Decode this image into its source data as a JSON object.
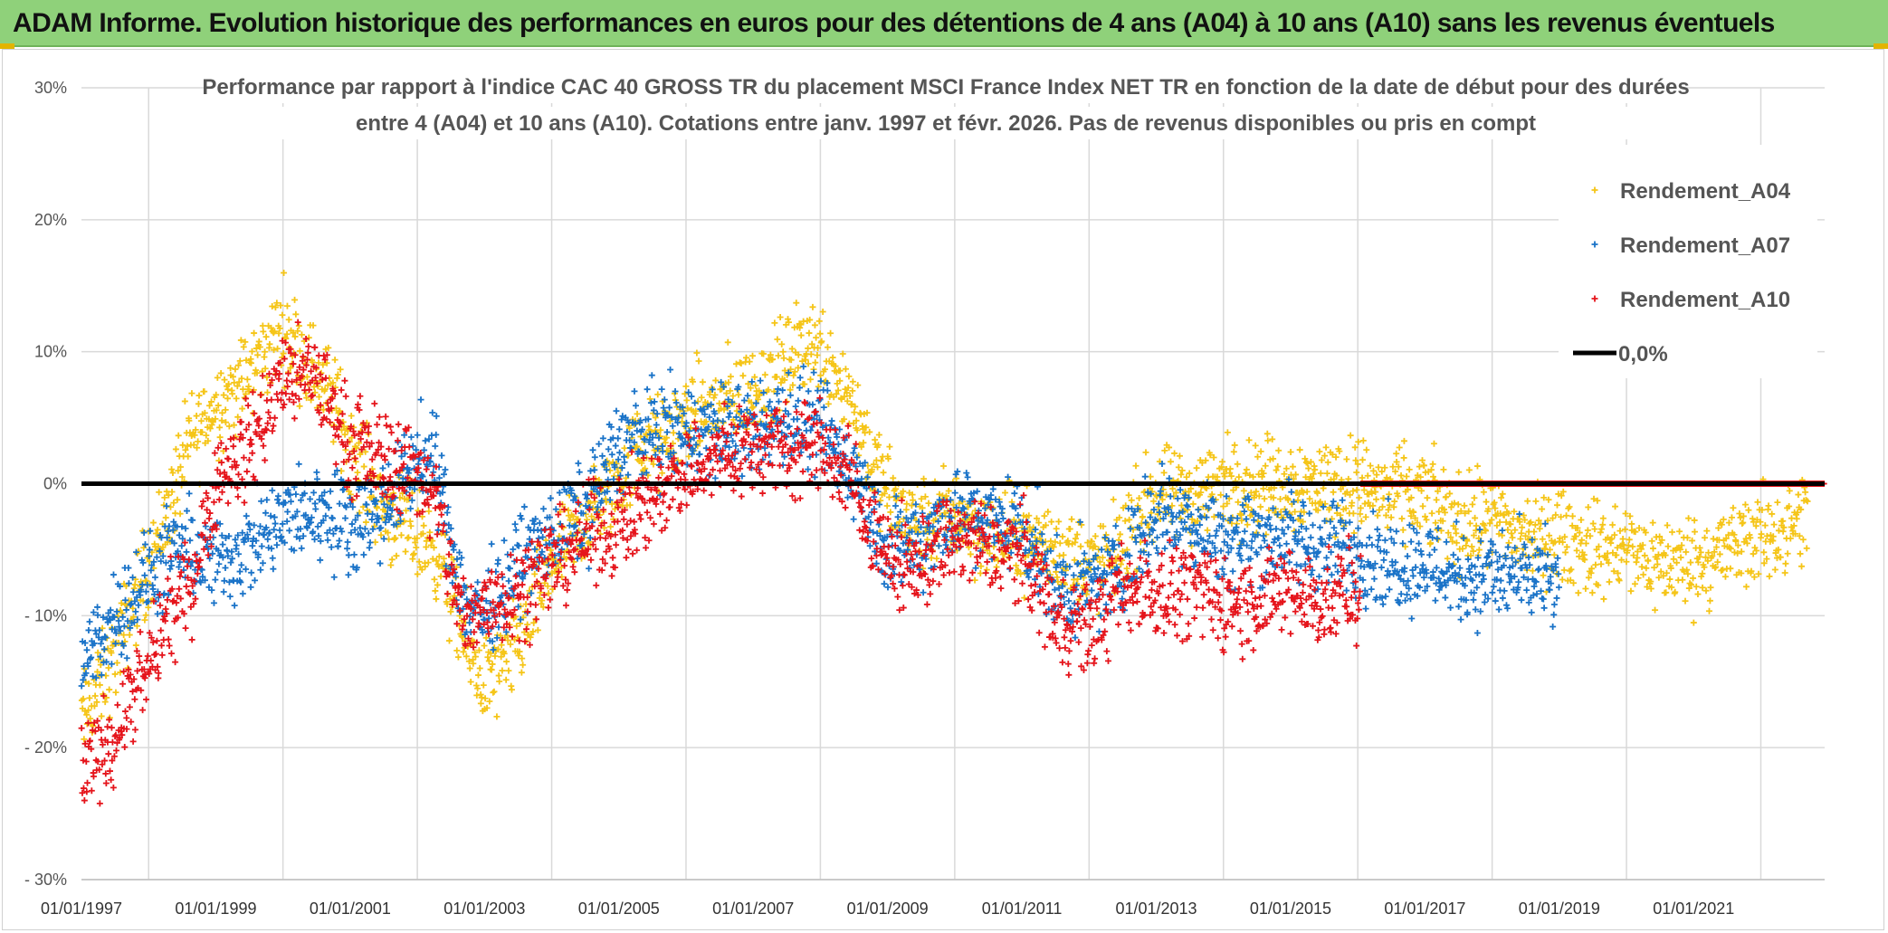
{
  "banner": {
    "title": "ADAM Informe. Evolution historique des performances en euros pour des détentions de 4 ans (A04) à 10 ans (A10) sans les revenus éventuels"
  },
  "chart_data": {
    "type": "scatter",
    "title_lines": [
      "Performance par rapport à l'indice CAC 40 GROSS TR  du placement MSCI France Index NET TR en fonction de la date de début pour des durées",
      "entre 4 (A04) et 10 ans (A10). Cotations entre janv. 1997 et févr. 2026. Pas de revenus disponibles ou pris en compt"
    ],
    "xlabel": "",
    "ylabel": "",
    "x_range_years": [
      1997.0,
      2022.95
    ],
    "ylim": [
      -30,
      30
    ],
    "y_ticks": [
      30,
      20,
      10,
      0,
      -10,
      -20,
      -30
    ],
    "y_tick_labels": [
      "30%",
      "20%",
      "10%",
      "0%",
      "- 10%",
      "- 20%",
      "- 30%"
    ],
    "x_ticks": [
      1997,
      1999,
      2001,
      2003,
      2005,
      2007,
      2009,
      2011,
      2013,
      2015,
      2017,
      2019,
      2021
    ],
    "x_tick_labels": [
      "01/01/1997",
      "01/01/1999",
      "01/01/2001",
      "01/01/2003",
      "01/01/2005",
      "01/01/2007",
      "01/01/2009",
      "01/01/2011",
      "01/01/2013",
      "01/01/2015",
      "01/01/2017",
      "01/01/2019",
      "01/01/2021"
    ],
    "legend_position": "top-right",
    "reference_line": {
      "name": "0,0%",
      "y": 0,
      "color": "#000000"
    },
    "series": [
      {
        "name": "Rendement_A04",
        "color": "#f5c518",
        "marker": "+",
        "end_year": 2022.7,
        "trend": [
          [
            1997.0,
            -18
          ],
          [
            1997.5,
            -13
          ],
          [
            1998.0,
            -6
          ],
          [
            1998.3,
            -2
          ],
          [
            1998.6,
            3
          ],
          [
            1999.0,
            6
          ],
          [
            1999.5,
            8
          ],
          [
            2000.0,
            12
          ],
          [
            2000.4,
            9
          ],
          [
            2000.8,
            6
          ],
          [
            2001.0,
            3
          ],
          [
            2001.5,
            -2
          ],
          [
            2002.0,
            -4
          ],
          [
            2002.3,
            -5
          ],
          [
            2002.7,
            -12
          ],
          [
            2003.0,
            -15
          ],
          [
            2003.3,
            -14
          ],
          [
            2003.7,
            -10
          ],
          [
            2004.0,
            -6
          ],
          [
            2004.5,
            -3
          ],
          [
            2005.0,
            0
          ],
          [
            2005.3,
            3
          ],
          [
            2005.7,
            3
          ],
          [
            2006.0,
            5
          ],
          [
            2006.5,
            6
          ],
          [
            2007.0,
            7
          ],
          [
            2007.5,
            9
          ],
          [
            2007.8,
            11
          ],
          [
            2008.2,
            9
          ],
          [
            2008.5,
            6
          ],
          [
            2008.9,
            0
          ],
          [
            2009.3,
            -3
          ],
          [
            2009.7,
            -3
          ],
          [
            2010.0,
            -2
          ],
          [
            2010.5,
            -4
          ],
          [
            2011.0,
            -4
          ],
          [
            2011.5,
            -5
          ],
          [
            2012.0,
            -6
          ],
          [
            2012.3,
            -6
          ],
          [
            2012.8,
            -2
          ],
          [
            2013.0,
            -1
          ],
          [
            2013.5,
            -1
          ],
          [
            2014.0,
            0
          ],
          [
            2014.5,
            0
          ],
          [
            2015.0,
            0
          ],
          [
            2015.5,
            0
          ],
          [
            2016.0,
            0
          ],
          [
            2016.5,
            -1
          ],
          [
            2017.0,
            -1
          ],
          [
            2017.5,
            -3
          ],
          [
            2018.0,
            -3
          ],
          [
            2018.5,
            -4
          ],
          [
            2019.0,
            -4
          ],
          [
            2019.5,
            -5
          ],
          [
            2020.0,
            -5
          ],
          [
            2020.5,
            -6
          ],
          [
            2021.0,
            -6
          ],
          [
            2021.5,
            -5
          ],
          [
            2022.0,
            -4
          ],
          [
            2022.7,
            -3
          ]
        ]
      },
      {
        "name": "Rendement_A07",
        "color": "#1a73c8",
        "marker": "+",
        "end_year": 2019.0,
        "trend": [
          [
            1997.0,
            -14
          ],
          [
            1997.5,
            -10
          ],
          [
            1998.0,
            -7
          ],
          [
            1998.5,
            -5
          ],
          [
            1999.0,
            -6
          ],
          [
            1999.5,
            -5
          ],
          [
            2000.0,
            -3
          ],
          [
            2000.5,
            -2
          ],
          [
            2001.0,
            -3
          ],
          [
            2001.5,
            -2
          ],
          [
            2002.0,
            2
          ],
          [
            2002.3,
            1
          ],
          [
            2002.7,
            -9
          ],
          [
            2003.0,
            -10
          ],
          [
            2003.5,
            -6
          ],
          [
            2004.0,
            -4
          ],
          [
            2004.5,
            -2
          ],
          [
            2005.0,
            3
          ],
          [
            2005.5,
            4
          ],
          [
            2006.0,
            4
          ],
          [
            2006.5,
            4
          ],
          [
            2007.0,
            4
          ],
          [
            2007.5,
            5
          ],
          [
            2008.0,
            4
          ],
          [
            2008.5,
            1
          ],
          [
            2009.0,
            -5
          ],
          [
            2009.5,
            -4
          ],
          [
            2010.0,
            -2
          ],
          [
            2010.5,
            -3
          ],
          [
            2011.0,
            -3
          ],
          [
            2011.5,
            -8
          ],
          [
            2012.0,
            -8
          ],
          [
            2012.5,
            -6
          ],
          [
            2013.0,
            -2
          ],
          [
            2013.5,
            -3
          ],
          [
            2014.0,
            -4
          ],
          [
            2014.5,
            -4
          ],
          [
            2015.0,
            -4
          ],
          [
            2015.5,
            -5
          ],
          [
            2016.0,
            -5
          ],
          [
            2016.5,
            -6
          ],
          [
            2017.0,
            -6
          ],
          [
            2017.5,
            -7
          ],
          [
            2018.0,
            -7
          ],
          [
            2018.5,
            -7
          ],
          [
            2019.0,
            -8
          ]
        ]
      },
      {
        "name": "Rendement_A10",
        "color": "#e5141b",
        "marker": "+",
        "end_year": 2016.05,
        "flat_zero_from": 2016.05,
        "trend": [
          [
            1997.0,
            -22
          ],
          [
            1997.5,
            -19
          ],
          [
            1998.0,
            -14
          ],
          [
            1998.3,
            -10
          ],
          [
            1998.6,
            -8
          ],
          [
            1999.0,
            0
          ],
          [
            1999.5,
            3
          ],
          [
            2000.0,
            8
          ],
          [
            2000.5,
            8
          ],
          [
            2001.0,
            3
          ],
          [
            2001.5,
            2
          ],
          [
            2002.0,
            1
          ],
          [
            2002.3,
            -2
          ],
          [
            2002.7,
            -11
          ],
          [
            2003.0,
            -9
          ],
          [
            2003.5,
            -8
          ],
          [
            2004.0,
            -6
          ],
          [
            2004.5,
            -4
          ],
          [
            2005.0,
            -3
          ],
          [
            2005.5,
            -1
          ],
          [
            2006.0,
            1
          ],
          [
            2006.5,
            2
          ],
          [
            2007.0,
            3
          ],
          [
            2007.5,
            3
          ],
          [
            2008.0,
            3
          ],
          [
            2008.5,
            0
          ],
          [
            2009.0,
            -6
          ],
          [
            2009.5,
            -6
          ],
          [
            2010.0,
            -4
          ],
          [
            2010.5,
            -5
          ],
          [
            2011.0,
            -5
          ],
          [
            2011.5,
            -10
          ],
          [
            2012.0,
            -11
          ],
          [
            2012.5,
            -8
          ],
          [
            2013.0,
            -8
          ],
          [
            2013.5,
            -8
          ],
          [
            2014.0,
            -9
          ],
          [
            2014.5,
            -9
          ],
          [
            2015.0,
            -8
          ],
          [
            2015.5,
            -9
          ],
          [
            2016.05,
            -8
          ]
        ]
      }
    ]
  },
  "legend": {
    "items": [
      {
        "label": "Rendement_A04",
        "color": "#f5c518",
        "marker": "+"
      },
      {
        "label": "Rendement_A07",
        "color": "#1a73c8",
        "marker": "+"
      },
      {
        "label": "Rendement_A10",
        "color": "#e5141b",
        "marker": "+"
      },
      {
        "label": "0,0%",
        "color": "#000000",
        "marker": "line"
      }
    ]
  }
}
